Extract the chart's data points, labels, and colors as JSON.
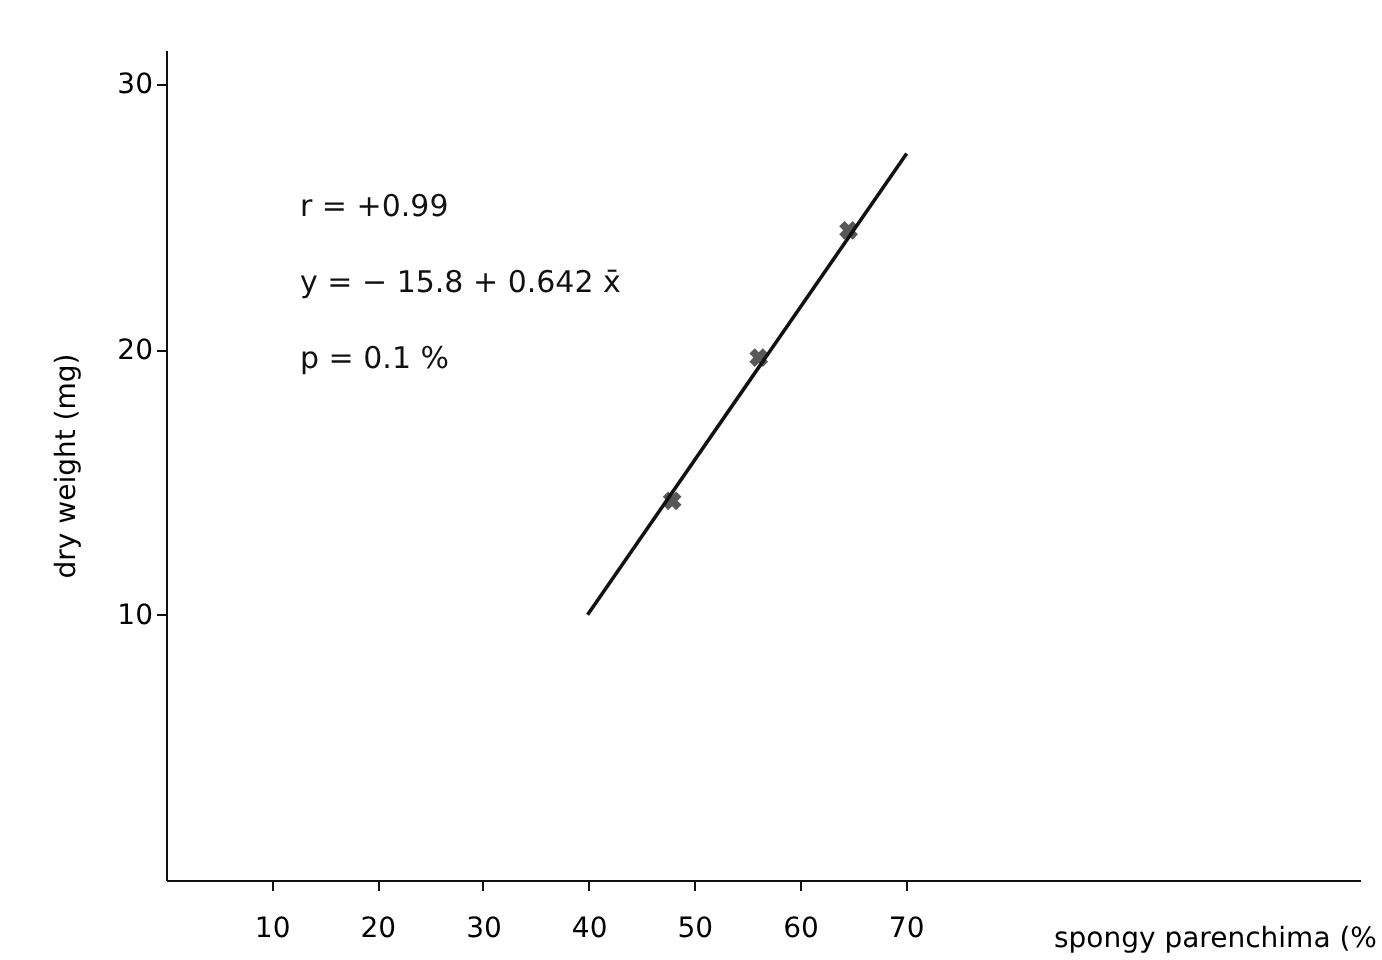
{
  "chart_data": {
    "type": "scatter",
    "xlabel": "spongy parenchima (%",
    "ylabel": "dry weight (mg)",
    "annotations": [
      "r = +0.99",
      "y = − 15.8 + 0.642 x̄",
      "p = 0.1 %"
    ],
    "xlim": [
      0,
      113
    ],
    "ylim": [
      0,
      31.3
    ],
    "xticks": [
      10,
      20,
      30,
      40,
      50,
      60,
      70
    ],
    "yticks": [
      10,
      20,
      30
    ],
    "grid": false,
    "series": [
      {
        "color": "#111111",
        "marker": "cross",
        "x": [
          47.9,
          56.1,
          64.6
        ],
        "values": [
          14.3,
          19.7,
          24.5
        ]
      },
      {
        "type": "line",
        "color": "#111111",
        "marker": "none",
        "line_style": "solid",
        "x": [
          39.9,
          70.1
        ],
        "values": [
          10.0,
          27.4
        ]
      }
    ]
  }
}
